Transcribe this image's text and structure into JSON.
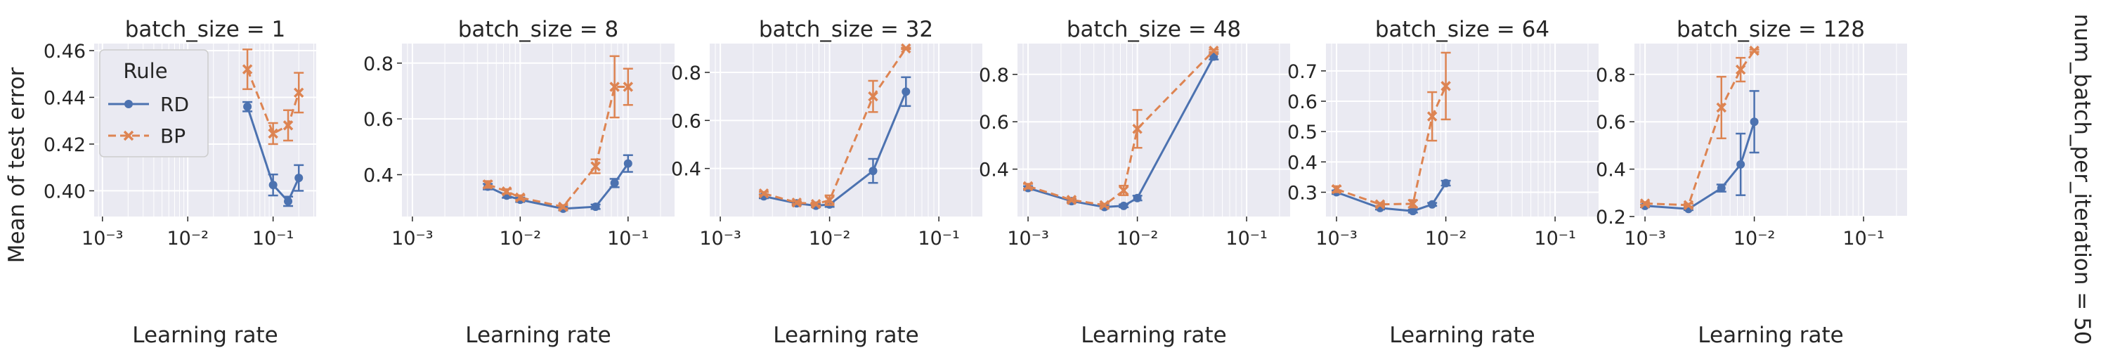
{
  "figure": {
    "ylabel": "Mean of test error",
    "xlabel": "Learning rate",
    "row_label": "num_batch_per_iteration = 50",
    "legend": {
      "title": "Rule",
      "entries": [
        "RD",
        "BP"
      ],
      "placement": "upper-left of first panel"
    },
    "colors": {
      "RD": "#4c72b0",
      "BP": "#dd8452",
      "panel_bg": "#eaeaf2",
      "grid": "#ffffff",
      "text": "#262626"
    }
  },
  "chart_data": [
    {
      "type": "line",
      "title": "batch_size = 1",
      "xscale": "log",
      "xlim": [
        0.0008,
        0.32
      ],
      "ylim": [
        0.389,
        0.463
      ],
      "yticks": [
        0.4,
        0.42,
        0.44,
        0.46
      ],
      "ytick_labels": [
        "0.40",
        "0.42",
        "0.44",
        "0.46"
      ],
      "xticks": [
        0.001,
        0.01,
        0.1
      ],
      "xtick_labels": [
        "10⁻³",
        "10⁻²",
        "10⁻¹"
      ],
      "series": [
        {
          "name": "RD",
          "x": [
            0.05,
            0.1,
            0.15,
            0.2
          ],
          "y": [
            0.436,
            0.4025,
            0.3955,
            0.4055
          ],
          "yerr": [
            0.002,
            0.0045,
            0.002,
            0.0055
          ]
        },
        {
          "name": "BP",
          "x": [
            0.05,
            0.1,
            0.15,
            0.2
          ],
          "y": [
            0.452,
            0.4245,
            0.428,
            0.442
          ],
          "yerr": [
            0.0085,
            0.0045,
            0.0065,
            0.0085
          ]
        }
      ]
    },
    {
      "type": "line",
      "title": "batch_size = 8",
      "xscale": "log",
      "xlim": [
        0.0008,
        0.27
      ],
      "ylim": [
        0.25,
        0.87
      ],
      "yticks": [
        0.4,
        0.6,
        0.8
      ],
      "ytick_labels": [
        "0.4",
        "0.6",
        "0.8"
      ],
      "xticks": [
        0.001,
        0.01,
        0.1
      ],
      "xtick_labels": [
        "10⁻³",
        "10⁻²",
        "10⁻¹"
      ],
      "series": [
        {
          "name": "RD",
          "x": [
            0.005,
            0.0075,
            0.01,
            0.025,
            0.05,
            0.075,
            0.1
          ],
          "y": [
            0.357,
            0.325,
            0.31,
            0.278,
            0.285,
            0.37,
            0.44
          ],
          "yerr": [
            0.01,
            0.008,
            0.008,
            0.006,
            0.008,
            0.015,
            0.03
          ]
        },
        {
          "name": "BP",
          "x": [
            0.005,
            0.0075,
            0.01,
            0.025,
            0.05,
            0.075,
            0.1
          ],
          "y": [
            0.365,
            0.34,
            0.318,
            0.285,
            0.43,
            0.715,
            0.715
          ],
          "yerr": [
            0.012,
            0.008,
            0.008,
            0.006,
            0.025,
            0.11,
            0.065
          ]
        }
      ]
    },
    {
      "type": "line",
      "title": "batch_size = 32",
      "xscale": "log",
      "xlim": [
        0.0008,
        0.25
      ],
      "ylim": [
        0.2,
        0.92
      ],
      "yticks": [
        0.4,
        0.6,
        0.8
      ],
      "ytick_labels": [
        "0.4",
        "0.6",
        "0.8"
      ],
      "xticks": [
        0.001,
        0.01,
        0.1
      ],
      "xtick_labels": [
        "10⁻³",
        "10⁻²",
        "10⁻¹"
      ],
      "series": [
        {
          "name": "RD",
          "x": [
            0.0025,
            0.005,
            0.0075,
            0.01,
            0.025,
            0.05
          ],
          "y": [
            0.284,
            0.255,
            0.245,
            0.25,
            0.39,
            0.72
          ],
          "yerr": [
            0.008,
            0.006,
            0.006,
            0.01,
            0.05,
            0.06
          ]
        },
        {
          "name": "BP",
          "x": [
            0.0025,
            0.005,
            0.0075,
            0.01,
            0.025,
            0.05
          ],
          "y": [
            0.296,
            0.258,
            0.252,
            0.268,
            0.7,
            0.9
          ],
          "yerr": [
            0.006,
            0.006,
            0.006,
            0.02,
            0.065,
            0.003
          ]
        }
      ]
    },
    {
      "type": "line",
      "title": "batch_size = 48",
      "xscale": "log",
      "xlim": [
        0.0008,
        0.25
      ],
      "ylim": [
        0.2,
        0.93
      ],
      "yticks": [
        0.4,
        0.6,
        0.8
      ],
      "ytick_labels": [
        "0.4",
        "0.6",
        "0.8"
      ],
      "xticks": [
        0.001,
        0.01,
        0.1
      ],
      "xtick_labels": [
        "10⁻³",
        "10⁻²",
        "10⁻¹"
      ],
      "series": [
        {
          "name": "RD",
          "x": [
            0.001,
            0.0025,
            0.005,
            0.0075,
            0.01,
            0.05
          ],
          "y": [
            0.32,
            0.265,
            0.24,
            0.245,
            0.278,
            0.875
          ],
          "yerr": [
            0.008,
            0.006,
            0.006,
            0.006,
            0.01,
            0.012
          ]
        },
        {
          "name": "BP",
          "x": [
            0.001,
            0.0025,
            0.005,
            0.0075,
            0.01,
            0.05
          ],
          "y": [
            0.328,
            0.27,
            0.248,
            0.31,
            0.57,
            0.9
          ],
          "yerr": [
            0.01,
            0.006,
            0.006,
            0.02,
            0.08,
            0.005
          ]
        }
      ]
    },
    {
      "type": "line",
      "title": "batch_size = 64",
      "xscale": "log",
      "xlim": [
        0.0008,
        0.25
      ],
      "ylim": [
        0.22,
        0.79
      ],
      "yticks": [
        0.3,
        0.4,
        0.5,
        0.6,
        0.7
      ],
      "ytick_labels": [
        "0.3",
        "0.4",
        "0.5",
        "0.6",
        "0.7"
      ],
      "xticks": [
        0.001,
        0.01,
        0.1
      ],
      "xtick_labels": [
        "10⁻³",
        "10⁻²",
        "10⁻¹"
      ],
      "series": [
        {
          "name": "RD",
          "x": [
            0.001,
            0.0025,
            0.005,
            0.0075,
            0.01
          ],
          "y": [
            0.3,
            0.248,
            0.238,
            0.26,
            0.33
          ],
          "yerr": [
            0.006,
            0.005,
            0.005,
            0.005,
            0.008
          ]
        },
        {
          "name": "BP",
          "x": [
            0.001,
            0.0025,
            0.005,
            0.0075,
            0.01
          ],
          "y": [
            0.31,
            0.26,
            0.262,
            0.55,
            0.65
          ],
          "yerr": [
            0.01,
            0.005,
            0.012,
            0.08,
            0.11
          ]
        }
      ]
    },
    {
      "type": "line",
      "title": "batch_size = 128",
      "xscale": "log",
      "xlim": [
        0.0008,
        0.25
      ],
      "ylim": [
        0.2,
        0.93
      ],
      "yticks": [
        0.2,
        0.4,
        0.6,
        0.8
      ],
      "ytick_labels": [
        "0.2",
        "0.4",
        "0.6",
        "0.8"
      ],
      "xticks": [
        0.001,
        0.01,
        0.1
      ],
      "xtick_labels": [
        "10⁻³",
        "10⁻²",
        "10⁻¹"
      ],
      "series": [
        {
          "name": "RD",
          "x": [
            0.001,
            0.0025,
            0.005,
            0.0075,
            0.01
          ],
          "y": [
            0.245,
            0.232,
            0.32,
            0.42,
            0.6
          ],
          "yerr": [
            0.006,
            0.005,
            0.015,
            0.13,
            0.13
          ]
        },
        {
          "name": "BP",
          "x": [
            0.001,
            0.0025,
            0.005,
            0.0075,
            0.01
          ],
          "y": [
            0.255,
            0.248,
            0.66,
            0.82,
            0.9
          ],
          "yerr": [
            0.006,
            0.006,
            0.13,
            0.05,
            0.005
          ]
        }
      ]
    }
  ]
}
